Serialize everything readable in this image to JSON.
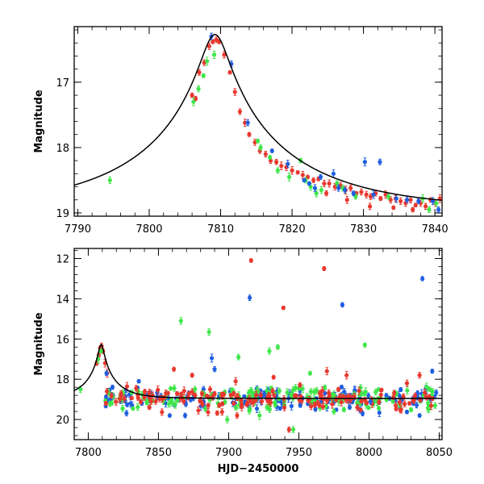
{
  "colors": {
    "red": "#e8382e",
    "green": "#3fe64a",
    "blue": "#1f5ee0",
    "model": "#000000"
  },
  "chart_data": [
    {
      "type": "scatter",
      "title": "",
      "xlabel": "",
      "ylabel": "Magnitude",
      "xlim": [
        7789.5,
        7841
      ],
      "ylim": [
        19.05,
        16.15
      ],
      "y_inverted": true,
      "xticks": [
        7790,
        7800,
        7810,
        7820,
        7830,
        7840
      ],
      "yticks": [
        17,
        18,
        19
      ],
      "model_curve": {
        "t0": 7809.2,
        "tE": 21.7,
        "u0": 0.085,
        "base": 18.95
      },
      "series": [
        {
          "color": "red",
          "points": [
            [
              7806.0,
              17.2
            ],
            [
              7806.5,
              17.25
            ],
            [
              7807.0,
              16.85
            ],
            [
              7807.7,
              16.7
            ],
            [
              7808.4,
              16.45
            ],
            [
              7808.9,
              16.38
            ],
            [
              7809.4,
              16.35
            ],
            [
              7809.8,
              16.38
            ],
            [
              7810.5,
              16.58
            ],
            [
              7811.3,
              16.85
            ],
            [
              7812.0,
              17.15
            ],
            [
              7812.7,
              17.45
            ],
            [
              7813.4,
              17.62
            ],
            [
              7814.0,
              17.8
            ],
            [
              7814.8,
              17.92
            ],
            [
              7815.5,
              18.05
            ],
            [
              7816.3,
              18.1
            ],
            [
              7817.0,
              18.2
            ],
            [
              7817.8,
              18.22
            ],
            [
              7818.5,
              18.28
            ],
            [
              7819.2,
              18.3
            ],
            [
              7820.0,
              18.35
            ],
            [
              7820.8,
              18.38
            ],
            [
              7821.5,
              18.42
            ],
            [
              7822.2,
              18.45
            ],
            [
              7823.0,
              18.5
            ],
            [
              7823.7,
              18.48
            ],
            [
              7824.5,
              18.55
            ],
            [
              7825.2,
              18.55
            ],
            [
              7826.0,
              18.6
            ],
            [
              7826.8,
              18.58
            ],
            [
              7827.5,
              18.65
            ],
            [
              7828.2,
              18.62
            ],
            [
              7829.0,
              18.7
            ],
            [
              7829.7,
              18.68
            ],
            [
              7830.4,
              18.72
            ],
            [
              7831.0,
              18.75
            ],
            [
              7831.7,
              18.7
            ],
            [
              7832.4,
              18.78
            ],
            [
              7833.1,
              18.72
            ],
            [
              7833.8,
              18.8
            ],
            [
              7834.5,
              18.78
            ],
            [
              7835.2,
              18.82
            ],
            [
              7835.9,
              18.85
            ],
            [
              7836.6,
              18.8
            ],
            [
              7837.3,
              18.88
            ],
            [
              7838.0,
              18.85
            ],
            [
              7838.7,
              18.9
            ],
            [
              7839.4,
              18.8
            ],
            [
              7840.1,
              18.85
            ],
            [
              7840.7,
              18.78
            ],
            [
              7824.8,
              18.7
            ],
            [
              7827.7,
              18.8
            ],
            [
              7830.9,
              18.9
            ],
            [
              7834.2,
              18.92
            ],
            [
              7836.9,
              18.95
            ]
          ]
        },
        {
          "color": "green",
          "points": [
            [
              7794.5,
              18.5
            ],
            [
              7806.2,
              17.3
            ],
            [
              7806.9,
              17.1
            ],
            [
              7807.6,
              16.9
            ],
            [
              7808.1,
              16.68
            ],
            [
              7809.1,
              16.58
            ],
            [
              7815.2,
              17.9
            ],
            [
              7815.6,
              18.0
            ],
            [
              7818.0,
              18.35
            ],
            [
              7819.6,
              18.45
            ],
            [
              7821.2,
              18.2
            ],
            [
              7821.9,
              18.5
            ],
            [
              7822.6,
              18.6
            ],
            [
              7823.4,
              18.7
            ],
            [
              7824.1,
              18.65
            ],
            [
              7827.1,
              18.62
            ],
            [
              7828.9,
              18.75
            ],
            [
              7833.5,
              18.75
            ],
            [
              7838.3,
              18.78
            ],
            [
              7839.2,
              18.95
            ],
            [
              7840.2,
              18.85
            ],
            [
              7816.9,
              18.15
            ],
            [
              7826.3,
              18.55
            ]
          ]
        },
        {
          "color": "blue",
          "points": [
            [
              7808.7,
              16.3
            ],
            [
              7811.5,
              16.72
            ],
            [
              7813.8,
              17.62
            ],
            [
              7817.2,
              18.05
            ],
            [
              7819.4,
              18.25
            ],
            [
              7821.7,
              18.5
            ],
            [
              7822.4,
              18.55
            ],
            [
              7823.2,
              18.62
            ],
            [
              7824.0,
              18.45
            ],
            [
              7825.8,
              18.4
            ],
            [
              7826.5,
              18.62
            ],
            [
              7827.4,
              18.65
            ],
            [
              7828.6,
              18.7
            ],
            [
              7830.2,
              18.22
            ],
            [
              7831.4,
              18.72
            ],
            [
              7832.3,
              18.22
            ],
            [
              7834.6,
              18.78
            ],
            [
              7836.1,
              18.8
            ],
            [
              7837.7,
              18.82
            ],
            [
              7839.7,
              18.82
            ],
            [
              7840.5,
              18.95
            ]
          ]
        }
      ]
    },
    {
      "type": "scatter",
      "title": "",
      "xlabel": "HJD−2450000",
      "ylabel": "Magnitude",
      "xlim": [
        7790,
        8052
      ],
      "ylim": [
        21.0,
        11.5
      ],
      "y_inverted": true,
      "xticks": [
        7800,
        7850,
        7900,
        7950,
        8000,
        8050
      ],
      "yticks": [
        12,
        14,
        16,
        18,
        20
      ],
      "model_curve": {
        "t0": 7809.2,
        "tE": 21.7,
        "u0": 0.085,
        "base": 18.95
      },
      "scatter_baseline": {
        "x_start": 7812,
        "x_end": 8048,
        "count_per_series": 150,
        "mean": 18.95,
        "spread": 0.55
      },
      "series": [
        {
          "color": "red",
          "points": [
            [
              7806.0,
              17.2
            ],
            [
              7807.5,
              16.8
            ],
            [
              7808.5,
              16.45
            ],
            [
              7809.5,
              16.35
            ],
            [
              7810.5,
              16.6
            ],
            [
              7812.0,
              17.2
            ],
            [
              7813.5,
              17.7
            ],
            [
              7916.0,
              12.1
            ],
            [
              7968.0,
              12.5
            ],
            [
              7939.0,
              14.45
            ],
            [
              7861.0,
              17.5
            ],
            [
              7874.0,
              17.8
            ],
            [
              7905.0,
              18.1
            ],
            [
              7932.0,
              17.9
            ],
            [
              7970.0,
              17.6
            ],
            [
              7984.0,
              17.8
            ],
            [
              8027.0,
              18.2
            ],
            [
              8036.0,
              17.8
            ],
            [
              8019.0,
              19.3
            ],
            [
              7986.0,
              19.0
            ],
            [
              7943.0,
              20.5
            ],
            [
              7906.0,
              19.8
            ]
          ]
        },
        {
          "color": "green",
          "points": [
            [
              7794.5,
              18.5
            ],
            [
              7807.0,
              17.0
            ],
            [
              7809.0,
              16.6
            ],
            [
              7866.0,
              15.1
            ],
            [
              7886.0,
              15.65
            ],
            [
              7907.0,
              16.9
            ],
            [
              7929.0,
              16.6
            ],
            [
              7935.0,
              16.4
            ],
            [
              7997.0,
              16.3
            ],
            [
              7958.0,
              17.7
            ],
            [
              7876.0,
              18.5
            ],
            [
              7899.0,
              20.0
            ],
            [
              7922.0,
              19.8
            ],
            [
              7946.0,
              20.5
            ],
            [
              7975.0,
              19.6
            ]
          ]
        },
        {
          "color": "blue",
          "points": [
            [
              7813.0,
              17.7
            ],
            [
              7836.0,
              18.1
            ],
            [
              7888.0,
              16.95
            ],
            [
              7890.0,
              17.5
            ],
            [
              7915.0,
              13.95
            ],
            [
              7981.0,
              14.3
            ],
            [
              8038.0,
              13.0
            ],
            [
              8045.0,
              17.6
            ],
            [
              8036.0,
              19.8
            ],
            [
              7858.0,
              19.8
            ],
            [
              7869.0,
              19.8
            ],
            [
              8001.0,
              19.1
            ],
            [
              7951.0,
              19.3
            ]
          ]
        }
      ]
    }
  ]
}
